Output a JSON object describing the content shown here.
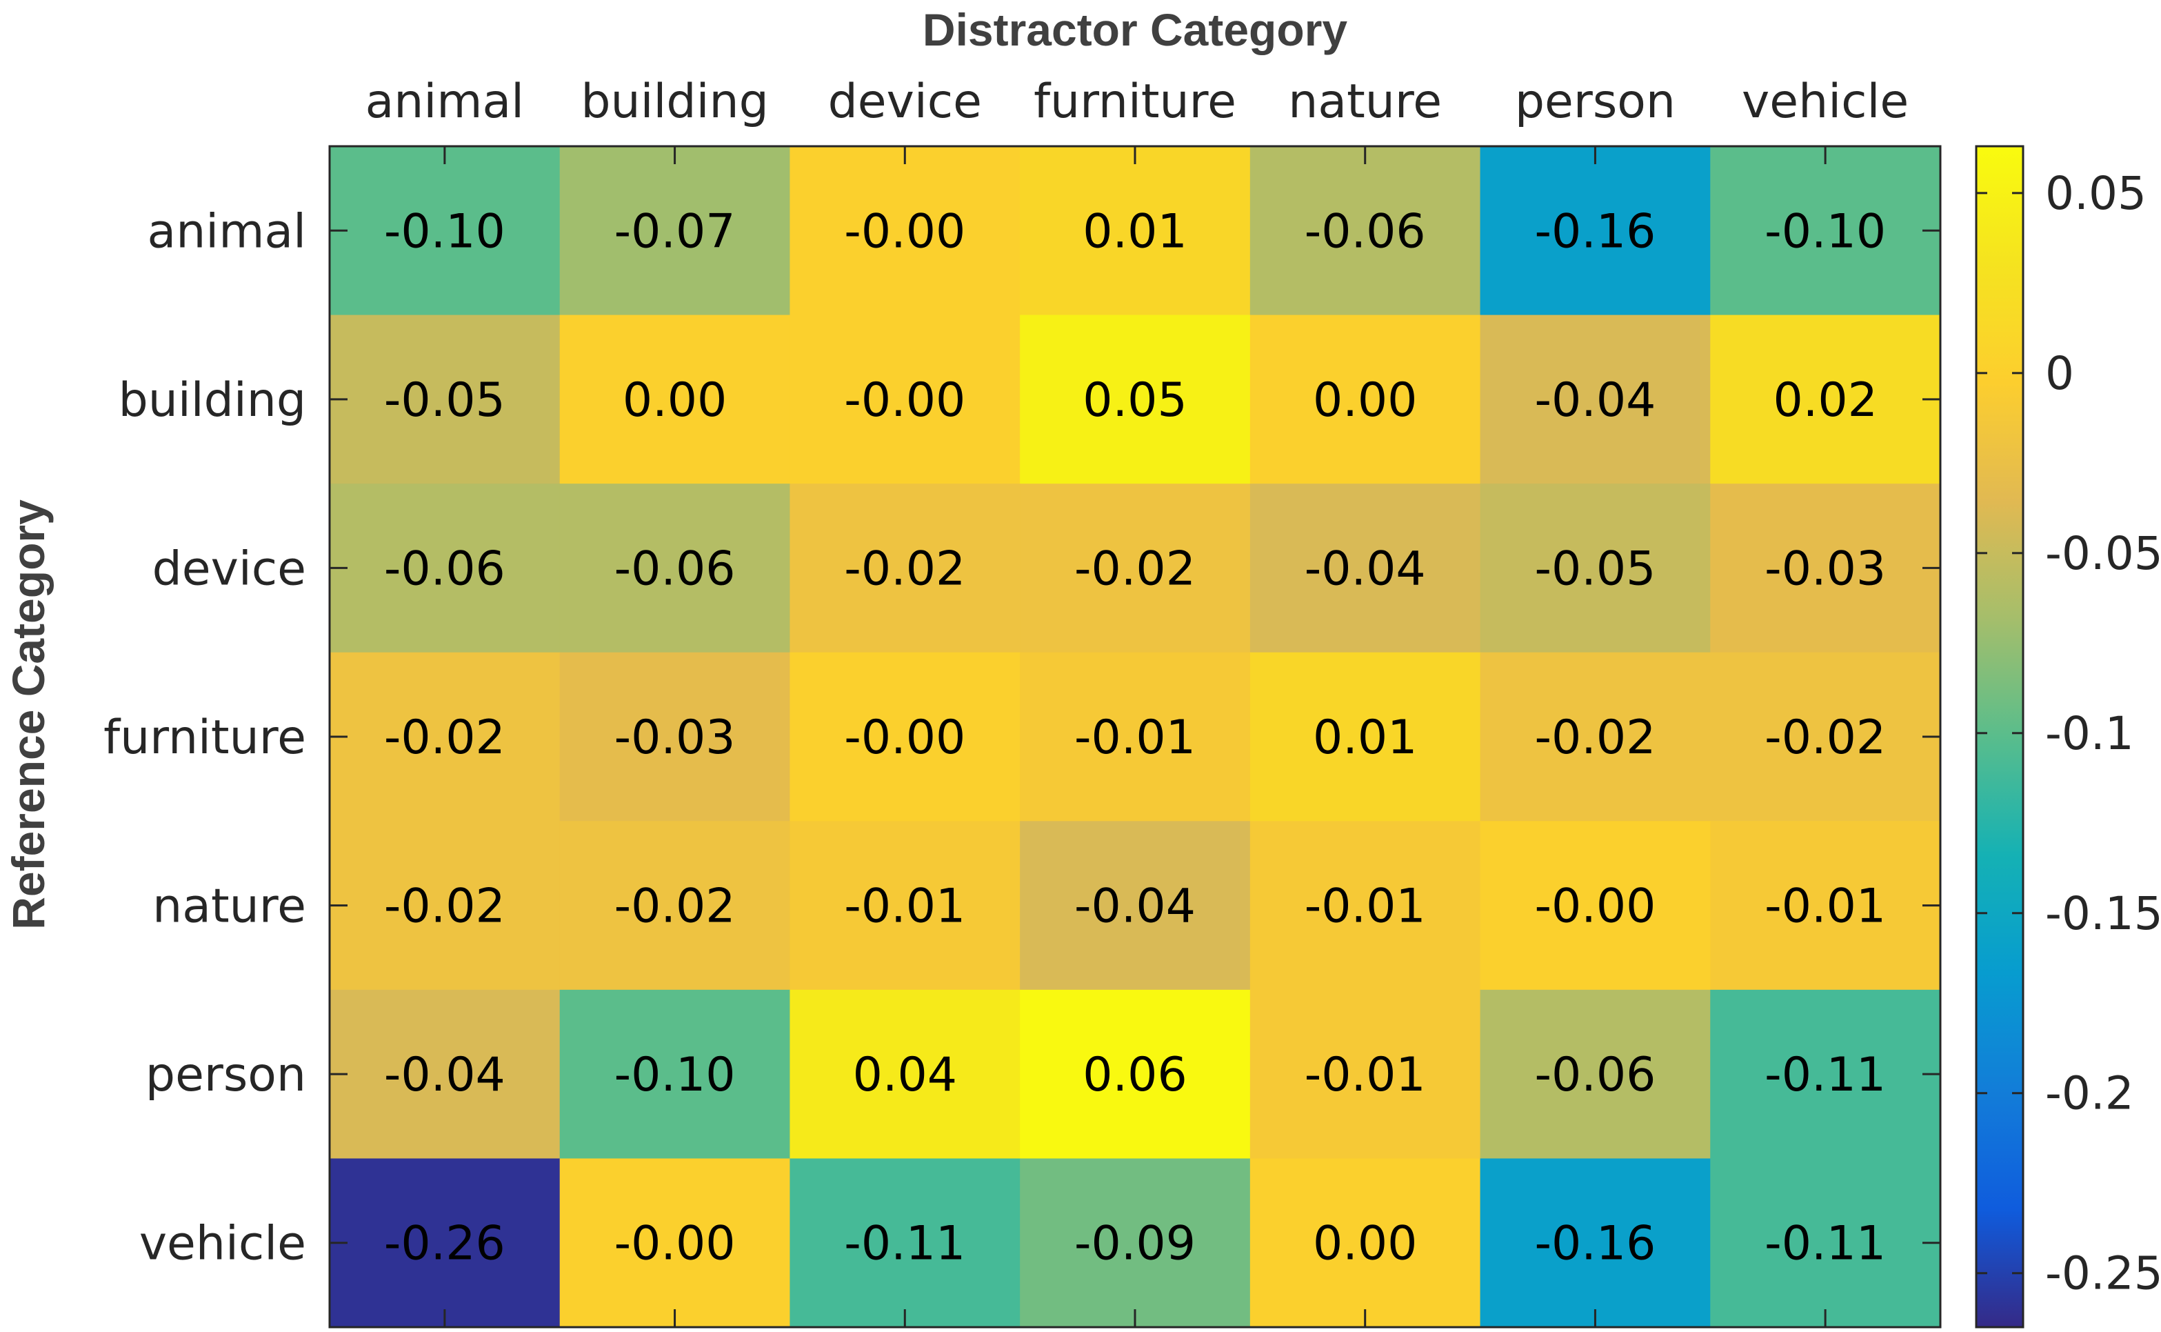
{
  "chart_data": {
    "type": "heatmap",
    "xlabel": "Distractor Category",
    "ylabel": "Reference Category",
    "x_categories": [
      "animal",
      "building",
      "device",
      "furniture",
      "nature",
      "person",
      "vehicle"
    ],
    "y_categories": [
      "animal",
      "building",
      "device",
      "furniture",
      "nature",
      "person",
      "vehicle"
    ],
    "values": [
      [
        -0.1,
        -0.07,
        -0.0,
        0.01,
        -0.06,
        -0.16,
        -0.1
      ],
      [
        -0.05,
        0.0,
        -0.0,
        0.05,
        0.0,
        -0.04,
        0.02
      ],
      [
        -0.06,
        -0.06,
        -0.02,
        -0.02,
        -0.04,
        -0.05,
        -0.03
      ],
      [
        -0.02,
        -0.03,
        -0.0,
        -0.01,
        0.01,
        -0.02,
        -0.02
      ],
      [
        -0.02,
        -0.02,
        -0.01,
        -0.04,
        -0.01,
        -0.0,
        -0.01
      ],
      [
        -0.04,
        -0.1,
        0.04,
        0.06,
        -0.01,
        -0.06,
        -0.11
      ],
      [
        -0.26,
        -0.0,
        -0.11,
        -0.09,
        0.0,
        -0.16,
        -0.11
      ]
    ],
    "value_labels": [
      [
        "-0.10",
        "-0.07",
        "-0.00",
        "0.01",
        "-0.06",
        "-0.16",
        "-0.10"
      ],
      [
        "-0.05",
        "0.00",
        "-0.00",
        "0.05",
        "0.00",
        "-0.04",
        "0.02"
      ],
      [
        "-0.06",
        "-0.06",
        "-0.02",
        "-0.02",
        "-0.04",
        "-0.05",
        "-0.03"
      ],
      [
        "-0.02",
        "-0.03",
        "-0.00",
        "-0.01",
        "0.01",
        "-0.02",
        "-0.02"
      ],
      [
        "-0.02",
        "-0.02",
        "-0.01",
        "-0.04",
        "-0.01",
        "-0.00",
        "-0.01"
      ],
      [
        "-0.04",
        "-0.10",
        "0.04",
        "0.06",
        "-0.01",
        "-0.06",
        "-0.11"
      ],
      [
        "-0.26",
        "-0.00",
        "-0.11",
        "-0.09",
        "0.00",
        "-0.16",
        "-0.11"
      ]
    ],
    "colormap": "parula",
    "colorbar": {
      "range": [
        -0.265,
        0.063
      ],
      "ticks": [
        0.05,
        0,
        -0.05,
        -0.1,
        -0.15,
        -0.2,
        -0.25
      ],
      "tick_labels": [
        "0.05",
        "0",
        "-0.05",
        "-0.1",
        "-0.15",
        "-0.2",
        "-0.25"
      ]
    },
    "x_axis_position": "top"
  }
}
